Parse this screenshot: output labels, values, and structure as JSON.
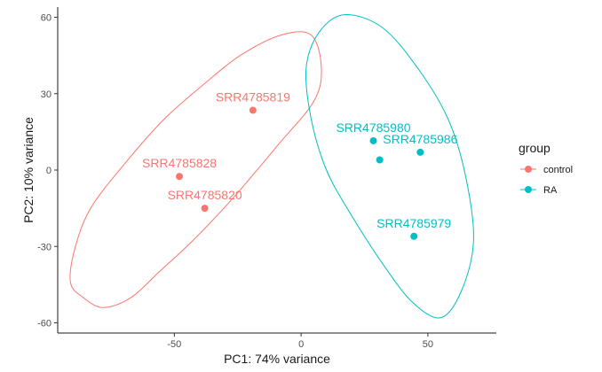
{
  "chart_data": {
    "type": "scatter",
    "xlabel": "PC1: 74% variance",
    "ylabel": "PC2: 10% variance",
    "xlim": [
      -96,
      77
    ],
    "ylim": [
      -64,
      64
    ],
    "x_ticks": [
      -50,
      0,
      50
    ],
    "x_tick_labels": [
      "-50",
      "0",
      "50"
    ],
    "y_ticks": [
      60,
      30,
      0,
      -30,
      -60
    ],
    "y_tick_labels": [
      "60",
      "30",
      "0",
      "-30",
      "-60"
    ],
    "grid": false,
    "legend": {
      "title": "group",
      "position": "right",
      "entries": [
        {
          "label": "control",
          "color": "#F8766D"
        },
        {
          "label": "RA",
          "color": "#00BFC4"
        }
      ]
    },
    "series": [
      {
        "name": "control",
        "color": "#F8766D",
        "points": [
          {
            "label": "SRR4785819",
            "x": -19,
            "y": 23.5
          },
          {
            "label": "SRR4785828",
            "x": -48,
            "y": -2.5
          },
          {
            "label": "SRR4785820",
            "x": -38,
            "y": -15
          }
        ],
        "ellipse": [
          [
            -78,
            -54
          ],
          [
            -86,
            -50
          ],
          [
            -91,
            -44
          ],
          [
            -89,
            -30
          ],
          [
            -83,
            -15
          ],
          [
            -70,
            2
          ],
          [
            -54,
            20
          ],
          [
            -38,
            34
          ],
          [
            -24,
            45
          ],
          [
            -8,
            53
          ],
          [
            4,
            53
          ],
          [
            8,
            40
          ],
          [
            5,
            27
          ],
          [
            -9,
            10
          ],
          [
            -26,
            -10
          ],
          [
            -42,
            -27
          ],
          [
            -56,
            -40
          ],
          [
            -67,
            -50
          ]
        ]
      },
      {
        "name": "RA",
        "color": "#00BFC4",
        "points": [
          {
            "label": "SRR4785980",
            "x": 28.5,
            "y": 11.5
          },
          {
            "label": "SRR4785986",
            "x": 47,
            "y": 7
          },
          {
            "label": "",
            "x": 31,
            "y": 4
          },
          {
            "label": "SRR4785979",
            "x": 44.5,
            "y": -26
          }
        ],
        "ellipse": [
          [
            17,
            61
          ],
          [
            7,
            54
          ],
          [
            2,
            40
          ],
          [
            4,
            20
          ],
          [
            10,
            0
          ],
          [
            20,
            -18
          ],
          [
            33,
            -38
          ],
          [
            44,
            -52
          ],
          [
            55,
            -58
          ],
          [
            63,
            -48
          ],
          [
            68,
            -28
          ],
          [
            65,
            -3
          ],
          [
            58,
            20
          ],
          [
            46,
            40
          ],
          [
            32,
            56
          ]
        ]
      }
    ]
  }
}
